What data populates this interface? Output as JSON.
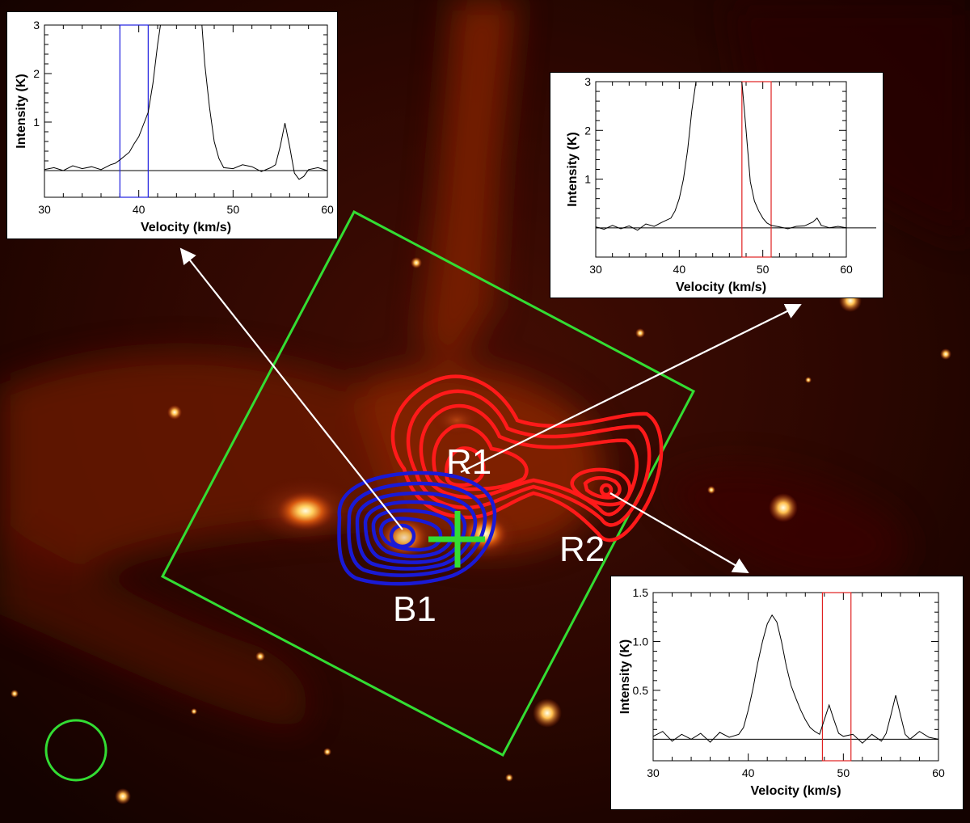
{
  "labels": {
    "b1": "B1",
    "r1": "R1",
    "r2": "R2"
  },
  "colors": {
    "blue_contours": "#1a1ad6",
    "red_contours": "#ff1a1a",
    "green_marks": "#33dd33",
    "arrows": "#ffffff"
  },
  "chart_data": [
    {
      "name": "B1-spectrum",
      "type": "line",
      "xlabel": "Velocity (km/s)",
      "ylabel": "Intensity (K)",
      "xlim": [
        30,
        60
      ],
      "ylim": [
        -0.55,
        3.0
      ],
      "xticks": [
        "30",
        "40",
        "50",
        "60"
      ],
      "yticks": [
        "1",
        "2",
        "3"
      ],
      "baseline": 0,
      "window": {
        "color": "blue",
        "vmin": 38,
        "vmax": 41
      },
      "series": [
        {
          "x": [
            30,
            31,
            32,
            33,
            34,
            35,
            36,
            37,
            37.5,
            38,
            38.5,
            39,
            39.5,
            40,
            40.5,
            41,
            41.5,
            42,
            42.3,
            46.7,
            47,
            47.5,
            48,
            48.5,
            49,
            50,
            51,
            52,
            53,
            54,
            54.5,
            55,
            55.5,
            56,
            56.5,
            57,
            57.5,
            58,
            59,
            60
          ],
          "y": [
            0.02,
            0.06,
            0.0,
            0.1,
            0.04,
            0.08,
            0.02,
            0.12,
            0.15,
            0.22,
            0.3,
            0.38,
            0.55,
            0.7,
            0.95,
            1.2,
            1.8,
            2.6,
            3.0,
            3.0,
            2.2,
            1.3,
            0.6,
            0.25,
            0.06,
            0.04,
            0.12,
            0.08,
            -0.02,
            0.06,
            0.12,
            0.5,
            0.98,
            0.5,
            -0.05,
            -0.18,
            -0.12,
            0.02,
            0.06,
            0.0
          ]
        }
      ]
    },
    {
      "name": "R1-spectrum",
      "type": "line",
      "xlabel": "Velocity (km/s)",
      "ylabel": "Intensity (K)",
      "xlim": [
        30,
        60
      ],
      "ylim": [
        -0.6,
        3.0
      ],
      "xticks": [
        "30",
        "40",
        "50",
        "60"
      ],
      "yticks": [
        "1",
        "2",
        "3"
      ],
      "baseline": 0,
      "window": {
        "color": "red",
        "vmin": 47.5,
        "vmax": 51
      },
      "series": [
        {
          "x": [
            30,
            31,
            32,
            33,
            34,
            35,
            36,
            37,
            38,
            39,
            39.5,
            40,
            40.5,
            41,
            41.5,
            42,
            47.5,
            48,
            48.5,
            49,
            49.5,
            50,
            50.5,
            51,
            52,
            53,
            54,
            55,
            56,
            56.5,
            57,
            58,
            59,
            60
          ],
          "y": [
            0.02,
            -0.03,
            0.05,
            -0.02,
            0.04,
            -0.05,
            0.08,
            0.03,
            0.12,
            0.2,
            0.35,
            0.6,
            1.0,
            1.6,
            2.4,
            3.0,
            3.0,
            2.0,
            0.95,
            0.55,
            0.35,
            0.2,
            0.1,
            0.05,
            0.02,
            -0.02,
            0.03,
            0.04,
            0.12,
            0.2,
            0.05,
            0.0,
            0.03,
            0.0
          ]
        }
      ]
    },
    {
      "name": "R2-spectrum",
      "type": "line",
      "xlabel": "Velocity (km/s)",
      "ylabel": "Intensity (K)",
      "xlim": [
        30,
        60
      ],
      "ylim": [
        -0.22,
        1.5
      ],
      "xticks": [
        "30",
        "40",
        "50",
        "60"
      ],
      "yticks": [
        "0.5",
        "1.0",
        "1.5"
      ],
      "baseline": 0,
      "window": {
        "color": "red",
        "vmin": 47.8,
        "vmax": 50.8
      },
      "series": [
        {
          "x": [
            30,
            31,
            32,
            33,
            34,
            35,
            36,
            37,
            38,
            39,
            39.5,
            40,
            40.5,
            41,
            41.5,
            42,
            42.5,
            43,
            43.5,
            44,
            44.5,
            45,
            45.5,
            46,
            46.5,
            47,
            47.5,
            48,
            48.5,
            49,
            49.5,
            50,
            51,
            52,
            53,
            54,
            54.5,
            55,
            55.5,
            56,
            56.5,
            57,
            58,
            59,
            60
          ],
          "y": [
            0.03,
            0.08,
            -0.02,
            0.05,
            0.0,
            0.06,
            -0.03,
            0.07,
            0.02,
            0.05,
            0.12,
            0.3,
            0.52,
            0.78,
            1.0,
            1.18,
            1.27,
            1.2,
            1.0,
            0.75,
            0.55,
            0.42,
            0.3,
            0.2,
            0.12,
            0.08,
            0.05,
            0.2,
            0.35,
            0.2,
            0.06,
            0.03,
            0.05,
            -0.04,
            0.05,
            -0.02,
            0.06,
            0.25,
            0.45,
            0.25,
            0.05,
            0.0,
            0.08,
            0.02,
            0.0
          ]
        }
      ]
    }
  ]
}
